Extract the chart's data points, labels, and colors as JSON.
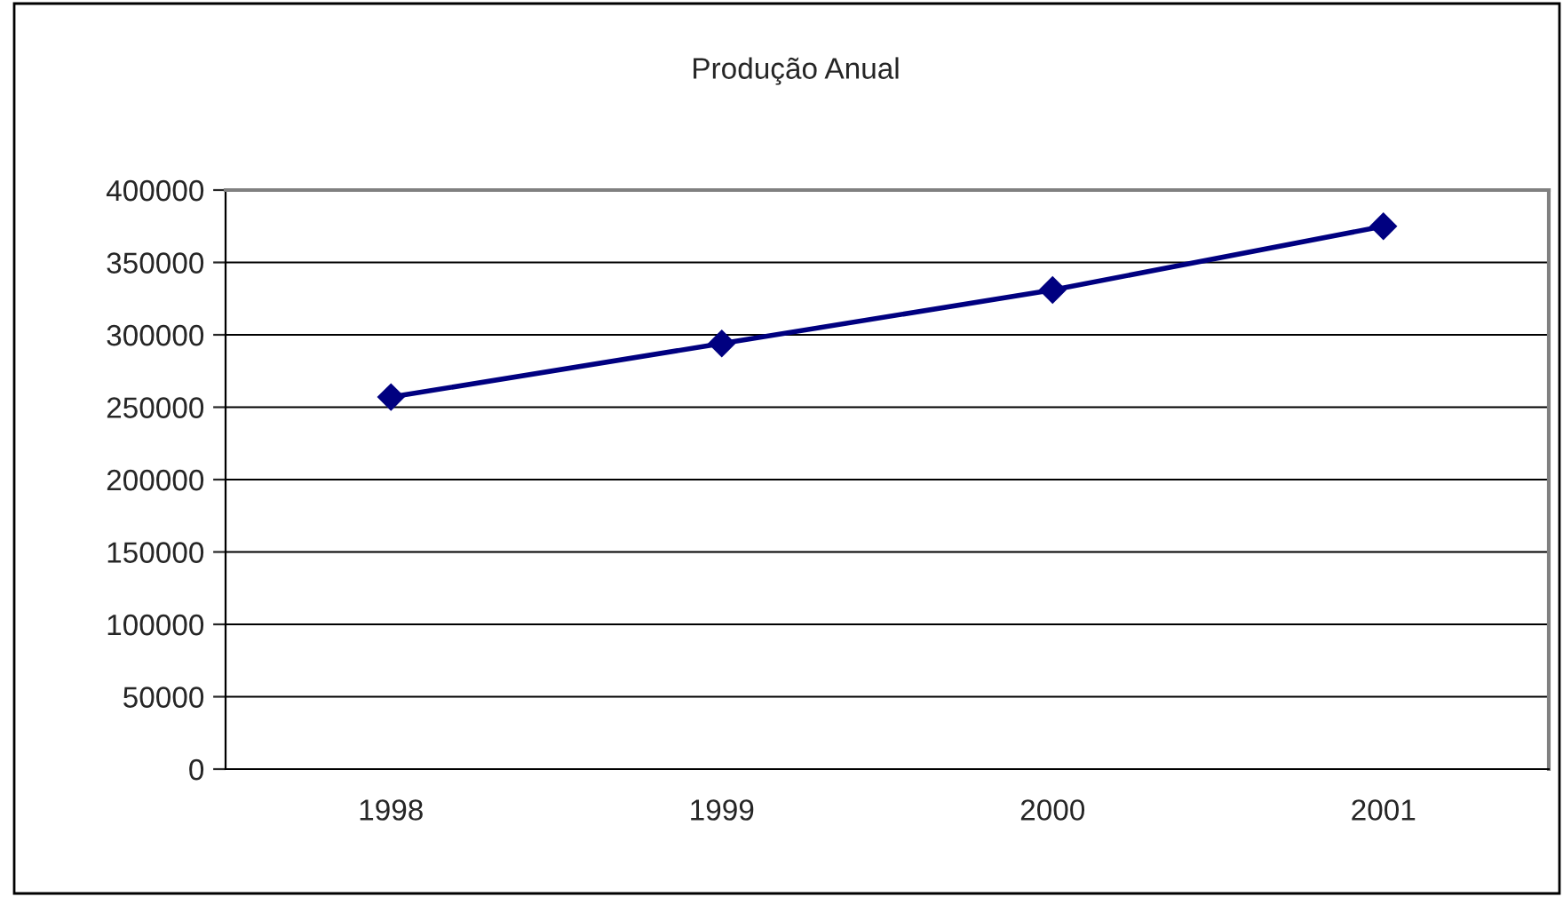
{
  "chart_data": {
    "type": "line",
    "title": "Produção Anual",
    "categories": [
      "1998",
      "1999",
      "2000",
      "2001"
    ],
    "series": [
      {
        "color": "#000080",
        "values": [
          257000,
          294000,
          331000,
          375000
        ]
      }
    ],
    "ylim": [
      0,
      400000
    ],
    "yticks": [
      0,
      50000,
      100000,
      150000,
      200000,
      250000,
      300000,
      350000,
      400000
    ],
    "grid": "y",
    "marker": "diamond",
    "line_style": "solid"
  }
}
